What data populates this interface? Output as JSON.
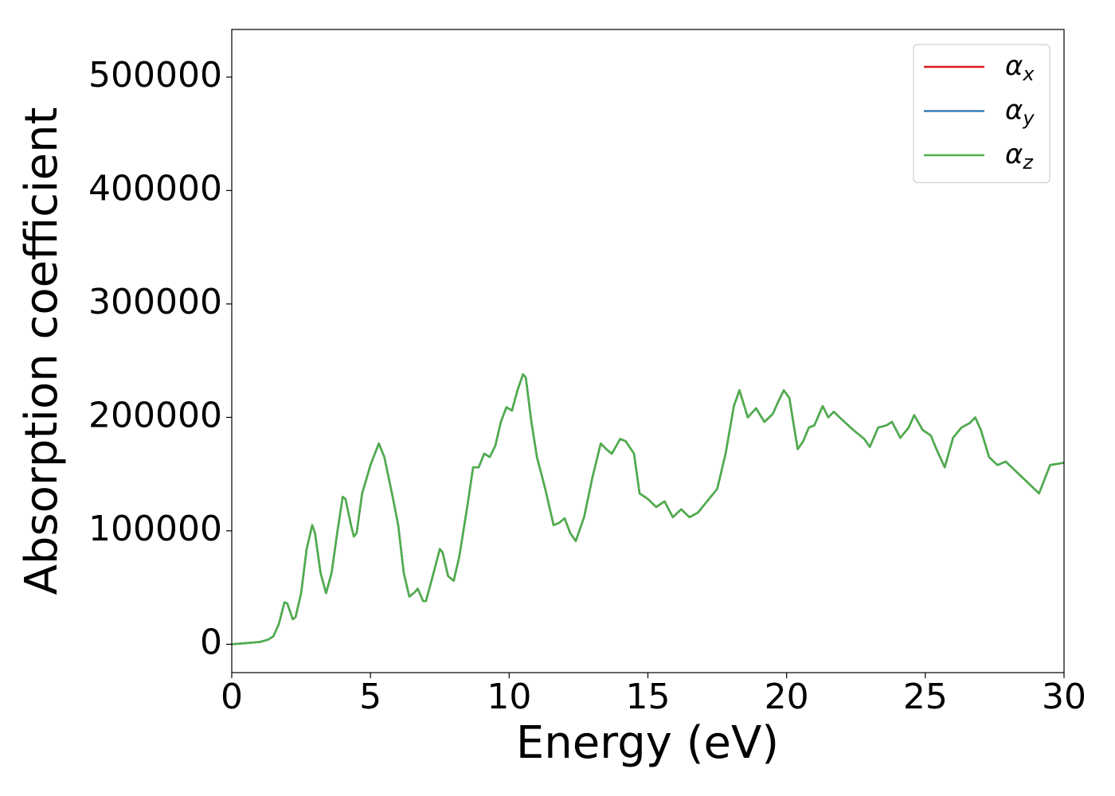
{
  "chart_data": {
    "type": "line",
    "xlabel": "Energy (eV)",
    "ylabel": "Absorption coefficient",
    "xlim": [
      0,
      30
    ],
    "ylim": [
      -25000,
      542000
    ],
    "xticks": [
      0,
      5,
      10,
      15,
      20,
      25,
      30
    ],
    "yticks": [
      0,
      100000,
      200000,
      300000,
      400000,
      500000
    ],
    "legend": "upper right",
    "x": [
      0,
      0.5,
      1.0,
      1.3,
      1.5,
      1.7,
      1.9,
      2.0,
      2.2,
      2.3,
      2.5,
      2.7,
      2.9,
      3.0,
      3.2,
      3.4,
      3.6,
      3.8,
      4.0,
      4.1,
      4.3,
      4.4,
      4.5,
      4.7,
      5.0,
      5.3,
      5.5,
      5.8,
      6.0,
      6.2,
      6.4,
      6.6,
      6.7,
      6.9,
      7.0,
      7.2,
      7.5,
      7.6,
      7.8,
      8.0,
      8.2,
      8.5,
      8.7,
      8.9,
      9.1,
      9.3,
      9.5,
      9.7,
      9.9,
      10.1,
      10.3,
      10.5,
      10.6,
      10.8,
      11.0,
      11.3,
      11.6,
      11.8,
      12.0,
      12.2,
      12.4,
      12.7,
      13.0,
      13.3,
      13.5,
      13.7,
      14.0,
      14.2,
      14.5,
      14.7,
      15.0,
      15.3,
      15.6,
      15.9,
      16.2,
      16.5,
      16.8,
      17.1,
      17.5,
      17.8,
      18.1,
      18.3,
      18.6,
      18.9,
      19.2,
      19.5,
      19.7,
      19.9,
      20.1,
      20.4,
      20.6,
      20.8,
      21.0,
      21.3,
      21.5,
      21.7,
      22.0,
      22.4,
      22.8,
      23.0,
      23.3,
      23.6,
      23.8,
      24.1,
      24.4,
      24.6,
      24.9,
      25.2,
      25.4,
      25.7,
      26.0,
      26.3,
      26.6,
      26.8,
      27.0,
      27.3,
      27.6,
      27.9,
      28.2,
      28.5,
      28.8,
      29.1,
      29.5,
      30
    ],
    "series": [
      {
        "name": "αx",
        "color": "#e41a1c",
        "values": [
          0,
          1000,
          2000,
          4000,
          7000,
          18000,
          37000,
          36000,
          22000,
          24000,
          45000,
          84000,
          105000,
          98000,
          63000,
          45000,
          63000,
          98000,
          130000,
          128000,
          105000,
          95000,
          98000,
          133000,
          158000,
          177000,
          165000,
          130000,
          105000,
          63000,
          42000,
          46000,
          49000,
          38000,
          38000,
          56000,
          84000,
          81000,
          60000,
          56000,
          77000,
          123000,
          156000,
          156000,
          168000,
          165000,
          175000,
          196000,
          209000,
          206000,
          224000,
          238000,
          235000,
          196000,
          165000,
          137000,
          105000,
          107000,
          111000,
          98000,
          91000,
          112000,
          147000,
          177000,
          172000,
          168000,
          181000,
          179000,
          168000,
          133000,
          128000,
          121000,
          126000,
          112000,
          119000,
          112000,
          116000,
          125000,
          137000,
          168000,
          210000,
          224000,
          200000,
          208000,
          196000,
          203000,
          214000,
          224000,
          217000,
          172000,
          179000,
          191000,
          193000,
          210000,
          200000,
          205000,
          198000,
          189000,
          181000,
          174000,
          191000,
          193000,
          196000,
          182000,
          191000,
          202000,
          189000,
          184000,
          172000,
          156000,
          182000,
          191000,
          195000,
          200000,
          189000,
          165000,
          158000,
          161000,
          154000,
          147000,
          140000,
          133000,
          158000,
          160000
        ]
      },
      {
        "name": "αy",
        "color": "#377eb8",
        "values": [
          0,
          1000,
          2000,
          4000,
          7000,
          18000,
          37000,
          36000,
          22000,
          24000,
          45000,
          84000,
          105000,
          98000,
          63000,
          45000,
          63000,
          98000,
          130000,
          128000,
          105000,
          95000,
          98000,
          133000,
          158000,
          177000,
          165000,
          130000,
          105000,
          63000,
          42000,
          46000,
          49000,
          38000,
          38000,
          56000,
          84000,
          81000,
          60000,
          56000,
          77000,
          123000,
          156000,
          156000,
          168000,
          165000,
          175000,
          196000,
          209000,
          206000,
          224000,
          238000,
          235000,
          196000,
          165000,
          137000,
          105000,
          107000,
          111000,
          98000,
          91000,
          112000,
          147000,
          177000,
          172000,
          168000,
          181000,
          179000,
          168000,
          133000,
          128000,
          121000,
          126000,
          112000,
          119000,
          112000,
          116000,
          125000,
          137000,
          168000,
          210000,
          224000,
          200000,
          208000,
          196000,
          203000,
          214000,
          224000,
          217000,
          172000,
          179000,
          191000,
          193000,
          210000,
          200000,
          205000,
          198000,
          189000,
          181000,
          174000,
          191000,
          193000,
          196000,
          182000,
          191000,
          202000,
          189000,
          184000,
          172000,
          156000,
          182000,
          191000,
          195000,
          200000,
          189000,
          165000,
          158000,
          161000,
          154000,
          147000,
          140000,
          133000,
          158000,
          160000
        ]
      },
      {
        "name": "αz",
        "color": "#4daf4a",
        "values": [
          0,
          1000,
          2000,
          4000,
          7000,
          18000,
          37000,
          36000,
          22000,
          24000,
          45000,
          84000,
          105000,
          98000,
          63000,
          45000,
          63000,
          98000,
          130000,
          128000,
          105000,
          95000,
          98000,
          133000,
          158000,
          177000,
          165000,
          130000,
          105000,
          63000,
          42000,
          46000,
          49000,
          38000,
          38000,
          56000,
          84000,
          81000,
          60000,
          56000,
          77000,
          123000,
          156000,
          156000,
          168000,
          165000,
          175000,
          196000,
          209000,
          206000,
          224000,
          238000,
          235000,
          196000,
          165000,
          137000,
          105000,
          107000,
          111000,
          98000,
          91000,
          112000,
          147000,
          177000,
          172000,
          168000,
          181000,
          179000,
          168000,
          133000,
          128000,
          121000,
          126000,
          112000,
          119000,
          112000,
          116000,
          125000,
          137000,
          168000,
          210000,
          224000,
          200000,
          208000,
          196000,
          203000,
          214000,
          224000,
          217000,
          172000,
          179000,
          191000,
          193000,
          210000,
          200000,
          205000,
          198000,
          189000,
          181000,
          174000,
          191000,
          193000,
          196000,
          182000,
          191000,
          202000,
          189000,
          184000,
          172000,
          156000,
          182000,
          191000,
          195000,
          200000,
          189000,
          165000,
          158000,
          161000,
          154000,
          147000,
          140000,
          133000,
          158000,
          160000
        ]
      }
    ]
  }
}
